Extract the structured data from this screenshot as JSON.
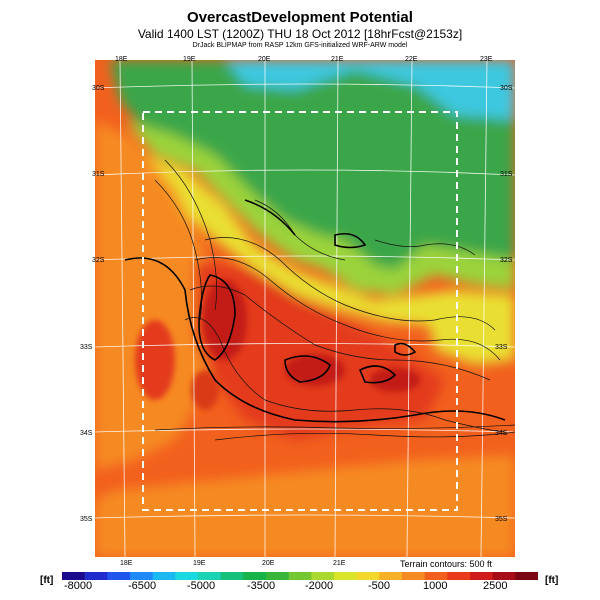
{
  "header": {
    "title": "OvercastDevelopment Potential",
    "subtitle": "Valid 1400 LST (1200Z) THU 18 Oct 2012 [18hrFcst@2153z]",
    "credit": "DrJack BLIPMAP from RASP 12km GFS-initialized WRF-ARW model"
  },
  "axes": {
    "top_lon": [
      "18E",
      "19E",
      "20E",
      "21E",
      "22E",
      "23E"
    ],
    "bottom_lon": [
      "18E",
      "19E",
      "20E",
      "21E"
    ],
    "left_lat": [
      "30S",
      "31S",
      "32S",
      "33S",
      "34S",
      "35S"
    ],
    "right_lat": [
      "30S",
      "31S",
      "32S",
      "33S",
      "34S",
      "35S"
    ]
  },
  "terrain_note": "Terrain contours: 500 ft",
  "colorbar": {
    "unit": "[ft]",
    "labels": [
      "-8000",
      "-6500",
      "-5000",
      "-3500",
      "-2000",
      "-500",
      "1000",
      "2500"
    ],
    "colors": [
      "#1a0a8c",
      "#1f2ccb",
      "#2156ee",
      "#1f8af5",
      "#1cb8f2",
      "#1ad9e0",
      "#19d3b2",
      "#14c07a",
      "#16b24a",
      "#39b53a",
      "#72c733",
      "#a9d92e",
      "#d9e529",
      "#f3d72a",
      "#f8b026",
      "#f68a22",
      "#f2601e",
      "#e8391b",
      "#d11a1a",
      "#a70c16",
      "#7d0614"
    ]
  },
  "colors": {
    "green": "#3aa64a",
    "lime": "#9bd33a",
    "yellow": "#e9df32",
    "orange": "#f68a22",
    "red": "#e33a1c",
    "cyan": "#3cc8e0",
    "dark_red": "#c31a14"
  }
}
